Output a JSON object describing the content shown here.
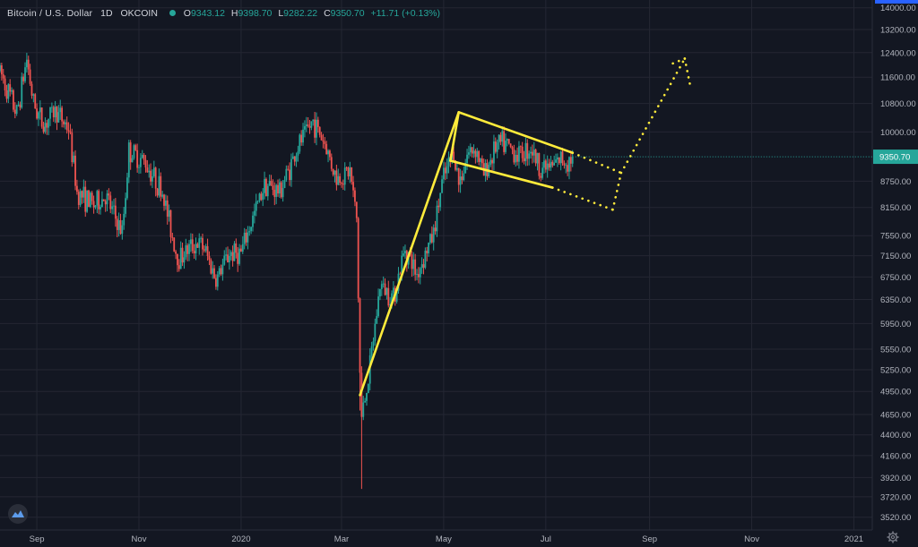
{
  "legend": {
    "symbol": "Bitcoin / U.S. Dollar",
    "interval": "1D",
    "exchange": "OKCOIN",
    "open_label": "O",
    "open": "9343.12",
    "high_label": "H",
    "high": "9398.70",
    "low_label": "L",
    "low": "9282.22",
    "close_label": "C",
    "close": "9350.70",
    "change": "+11.71 (+0.13%)"
  },
  "icons": {
    "logo": "tradingview-logo-icon",
    "settings": "gear-icon"
  },
  "colors": {
    "background": "#131722",
    "grid": "#242733",
    "up": "#26a69a",
    "down": "#ef5350",
    "drawing": "#ffeb3b",
    "price_tag": "#26a69a",
    "accent": "#2962ff"
  },
  "chart_data": {
    "type": "candlestick",
    "yscale": "log",
    "ylim": [
      3400,
      14300
    ],
    "xlim": [
      "2019-08-10",
      "2021-01-12"
    ],
    "ytick_labels": [
      "14000.00",
      "13200.00",
      "12400.00",
      "11600.00",
      "10800.00",
      "10000.00",
      "8750.00",
      "8150.00",
      "7550.00",
      "7150.00",
      "6750.00",
      "6350.00",
      "5950.00",
      "5550.00",
      "5250.00",
      "4950.00",
      "4650.00",
      "4400.00",
      "4160.00",
      "3920.00",
      "3720.00",
      "3520.00"
    ],
    "ytick_values": [
      14000,
      13200,
      12400,
      11600,
      10800,
      10000,
      8750,
      8150,
      7550,
      7150,
      6750,
      6350,
      5950,
      5550,
      5250,
      4950,
      4650,
      4400,
      4160,
      3920,
      3720,
      3520
    ],
    "xtick_labels": [
      "Sep",
      "Nov",
      "2020",
      "Mar",
      "May",
      "Jul",
      "Sep",
      "Nov",
      "2021"
    ],
    "xtick_dates": [
      "2019-09-01",
      "2019-11-01",
      "2020-01-01",
      "2020-03-01",
      "2020-05-01",
      "2020-07-01",
      "2020-09-01",
      "2020-11-01",
      "2021-01-01"
    ],
    "last_price": 9350.7,
    "last_price_label": "9350.70",
    "price_path": [
      [
        "2019-08-10",
        11800
      ],
      [
        "2019-08-20",
        10500
      ],
      [
        "2019-08-26",
        12200
      ],
      [
        "2019-08-30",
        10800
      ],
      [
        "2019-09-05",
        10200
      ],
      [
        "2019-09-12",
        10600
      ],
      [
        "2019-09-20",
        10100
      ],
      [
        "2019-09-25",
        8500
      ],
      [
        "2019-10-05",
        8200
      ],
      [
        "2019-10-12",
        8400
      ],
      [
        "2019-10-22",
        7600
      ],
      [
        "2019-10-26",
        9500
      ],
      [
        "2019-11-05",
        9200
      ],
      [
        "2019-11-15",
        8500
      ],
      [
        "2019-11-24",
        7100
      ],
      [
        "2019-12-05",
        7400
      ],
      [
        "2019-12-10",
        7300
      ],
      [
        "2019-12-17",
        6700
      ],
      [
        "2019-12-25",
        7200
      ],
      [
        "2020-01-01",
        7200
      ],
      [
        "2020-01-15",
        8700
      ],
      [
        "2020-01-24",
        8500
      ],
      [
        "2020-02-05",
        9700
      ],
      [
        "2020-02-13",
        10300
      ],
      [
        "2020-02-20",
        9700
      ],
      [
        "2020-02-27",
        8800
      ],
      [
        "2020-03-06",
        9000
      ],
      [
        "2020-03-10",
        7900
      ],
      [
        "2020-03-12",
        5200
      ],
      [
        "2020-03-13",
        4600
      ],
      [
        "2020-03-18",
        5300
      ],
      [
        "2020-03-24",
        6600
      ],
      [
        "2020-04-01",
        6400
      ],
      [
        "2020-04-08",
        7300
      ],
      [
        "2020-04-15",
        6800
      ],
      [
        "2020-04-25",
        7600
      ],
      [
        "2020-04-30",
        8700
      ],
      [
        "2020-05-07",
        9500
      ],
      [
        "2020-05-10",
        8700
      ],
      [
        "2020-05-15",
        9400
      ],
      [
        "2020-05-20",
        9600
      ],
      [
        "2020-05-25",
        8900
      ],
      [
        "2020-06-01",
        9600
      ],
      [
        "2020-06-05",
        9700
      ],
      [
        "2020-06-15",
        9400
      ],
      [
        "2020-06-22",
        9600
      ],
      [
        "2020-06-27",
        9100
      ],
      [
        "2020-07-05",
        9100
      ],
      [
        "2020-07-10",
        9300
      ],
      [
        "2020-07-14",
        9250
      ],
      [
        "2020-07-17",
        9350
      ]
    ],
    "drawings": [
      {
        "name": "flagpole",
        "style": "solid",
        "points": [
          [
            "2020-03-12",
            4900
          ],
          [
            "2020-05-10",
            10550
          ]
        ]
      },
      {
        "name": "flag-top",
        "style": "solid",
        "points": [
          [
            "2020-05-10",
            10550
          ],
          [
            "2020-07-17",
            9450
          ]
        ]
      },
      {
        "name": "flag-connector",
        "style": "solid",
        "points": [
          [
            "2020-05-05",
            9250
          ],
          [
            "2020-05-10",
            10550
          ]
        ]
      },
      {
        "name": "flag-bottom",
        "style": "solid",
        "points": [
          [
            "2020-05-05",
            9250
          ],
          [
            "2020-07-05",
            8600
          ]
        ]
      },
      {
        "name": "projected-top",
        "style": "dotted",
        "points": [
          [
            "2020-07-17",
            9450
          ],
          [
            "2020-08-15",
            8950
          ]
        ]
      },
      {
        "name": "projected-bottom",
        "style": "dotted",
        "points": [
          [
            "2020-07-05",
            8600
          ],
          [
            "2020-08-10",
            8100
          ]
        ]
      },
      {
        "name": "projected-right",
        "style": "dotted",
        "points": [
          [
            "2020-08-10",
            8100
          ],
          [
            "2020-08-15",
            8950
          ]
        ]
      },
      {
        "name": "projected-breakout",
        "style": "dotted",
        "points": [
          [
            "2020-08-15",
            8950
          ],
          [
            "2020-09-22",
            12200
          ]
        ]
      },
      {
        "name": "arrow-head-left",
        "style": "dotted",
        "points": [
          [
            "2020-09-22",
            12200
          ],
          [
            "2020-09-13",
            12000
          ]
        ]
      },
      {
        "name": "arrow-head-right",
        "style": "dotted",
        "points": [
          [
            "2020-09-22",
            12200
          ],
          [
            "2020-09-25",
            11400
          ]
        ]
      }
    ]
  }
}
